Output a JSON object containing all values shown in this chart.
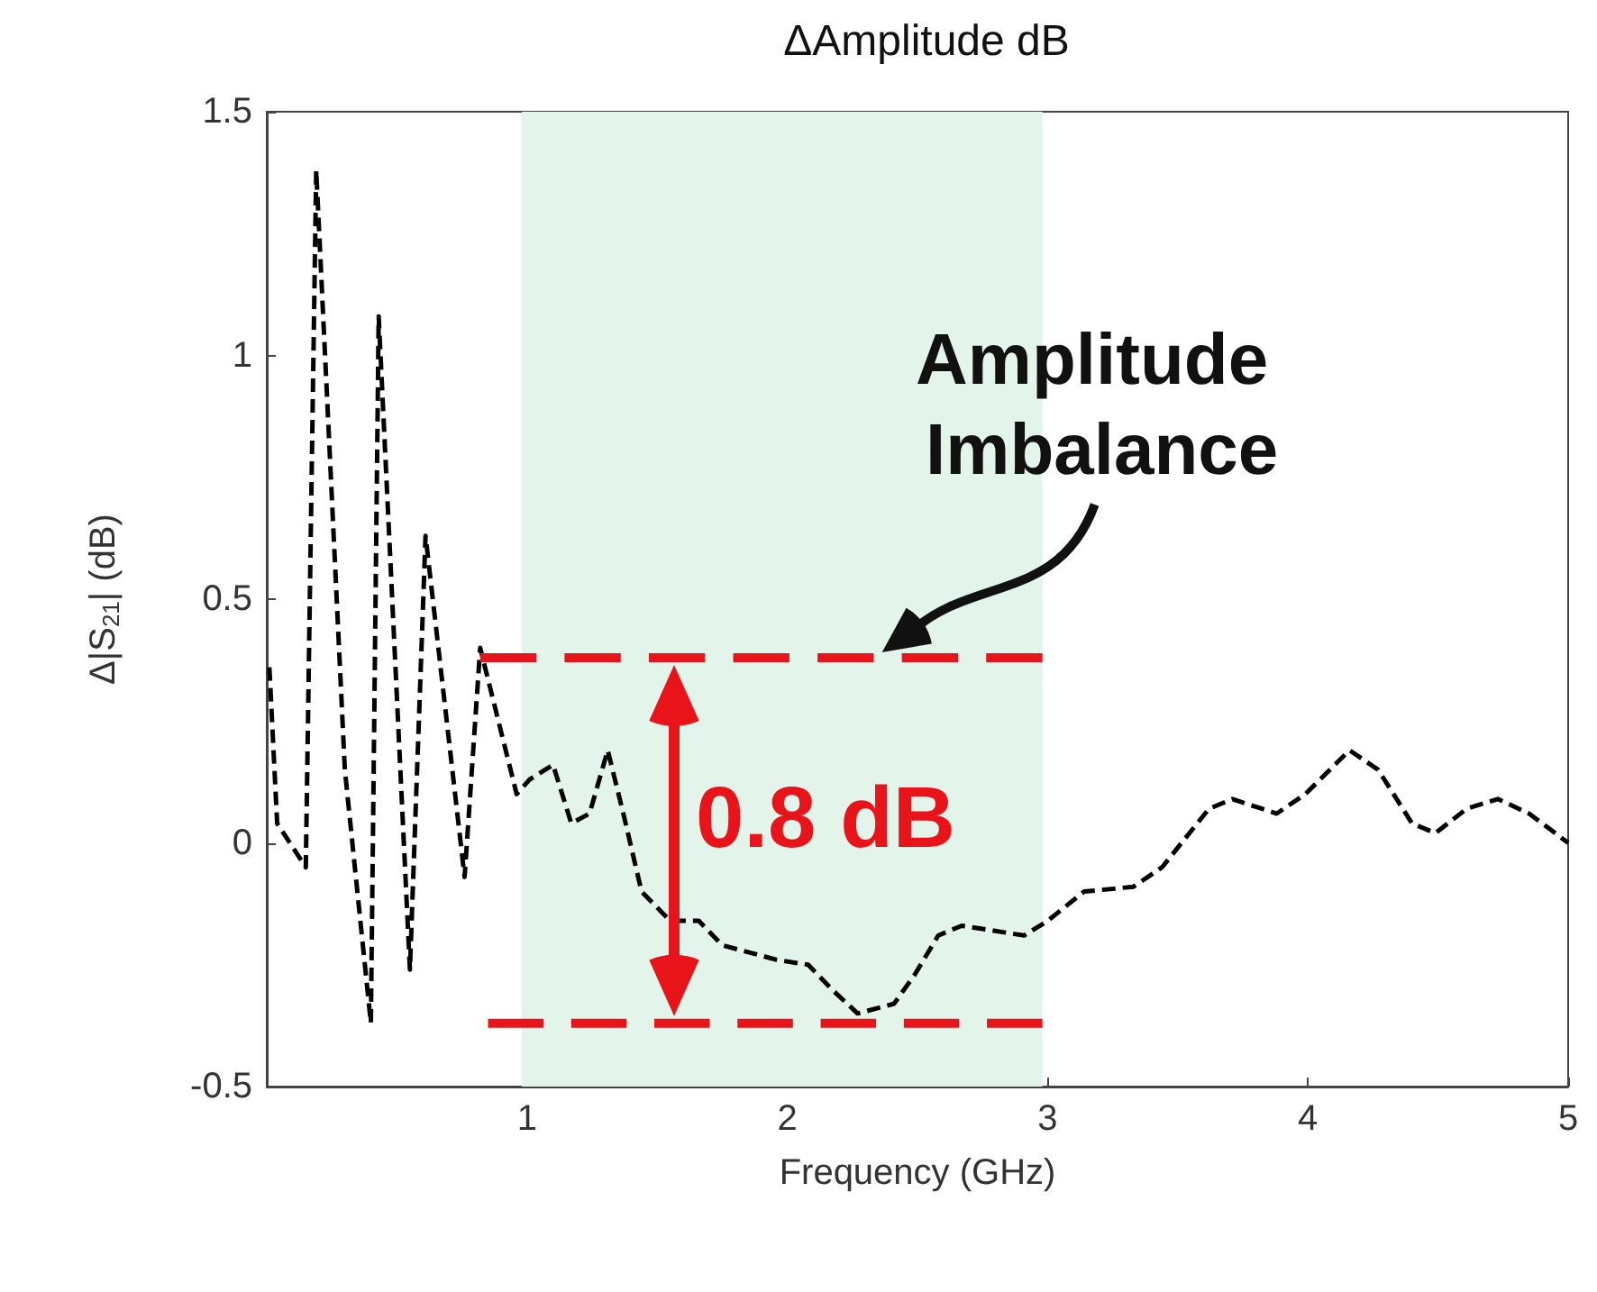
{
  "chart_data": {
    "type": "line",
    "title": "ΔAmplitude dB",
    "xlabel": "Frequency (GHz)",
    "ylabel": "Δ|S$_{21}$| (dB)",
    "xlim": [
      0,
      5
    ],
    "xticks": [
      1,
      2,
      3,
      4,
      5
    ],
    "ylim": [
      -0.5,
      1.5
    ],
    "yticks": [
      -0.5,
      0,
      0.5,
      1,
      1.5
    ],
    "grid": false,
    "marker": "none",
    "series": [
      {
        "color": "#000000",
        "line_style": "dashed",
        "x": [
          0.01,
          0.04,
          0.15,
          0.19,
          0.3,
          0.4,
          0.43,
          0.55,
          0.61,
          0.76,
          0.82,
          0.96,
          1.01,
          1.1,
          1.17,
          1.24,
          1.31,
          1.37,
          1.44,
          1.55,
          1.66,
          1.75,
          1.96,
          2.08,
          2.17,
          2.27,
          2.41,
          2.49,
          2.58,
          2.67,
          2.91,
          3.0,
          3.14,
          3.33,
          3.44,
          3.62,
          3.71,
          3.88,
          3.99,
          4.16,
          4.27,
          4.4,
          4.49,
          4.61,
          4.73,
          4.85,
          5.0
        ],
        "values": [
          0.36,
          0.04,
          -0.05,
          1.38,
          0.15,
          -0.37,
          1.08,
          -0.26,
          0.63,
          -0.07,
          0.4,
          0.1,
          0.13,
          0.16,
          0.04,
          0.06,
          0.19,
          0.06,
          -0.1,
          -0.16,
          -0.16,
          -0.21,
          -0.24,
          -0.25,
          -0.3,
          -0.35,
          -0.33,
          -0.27,
          -0.19,
          -0.17,
          -0.19,
          -0.16,
          -0.1,
          -0.09,
          -0.05,
          0.07,
          0.09,
          0.06,
          0.1,
          0.19,
          0.15,
          0.04,
          0.02,
          0.07,
          0.09,
          0.06,
          0.0
        ]
      },
      {
        "color": "#e8141a",
        "line_style": "dashed",
        "x": [
          0.82,
          2.98
        ],
        "values": [
          0.38,
          0.38
        ]
      },
      {
        "color": "#e8141a",
        "line_style": "dashed",
        "x": [
          0.85,
          2.98
        ],
        "values": [
          -0.37,
          -0.37
        ]
      }
    ],
    "bands": [
      {
        "axis": "x",
        "from": 0.98,
        "to": 2.98,
        "color": "#e3f4ea"
      }
    ],
    "annotations": [
      {
        "text": "Amplitude Imbalance",
        "x": 2.35,
        "y": 0.38
      },
      "0.8 dB"
    ]
  }
}
